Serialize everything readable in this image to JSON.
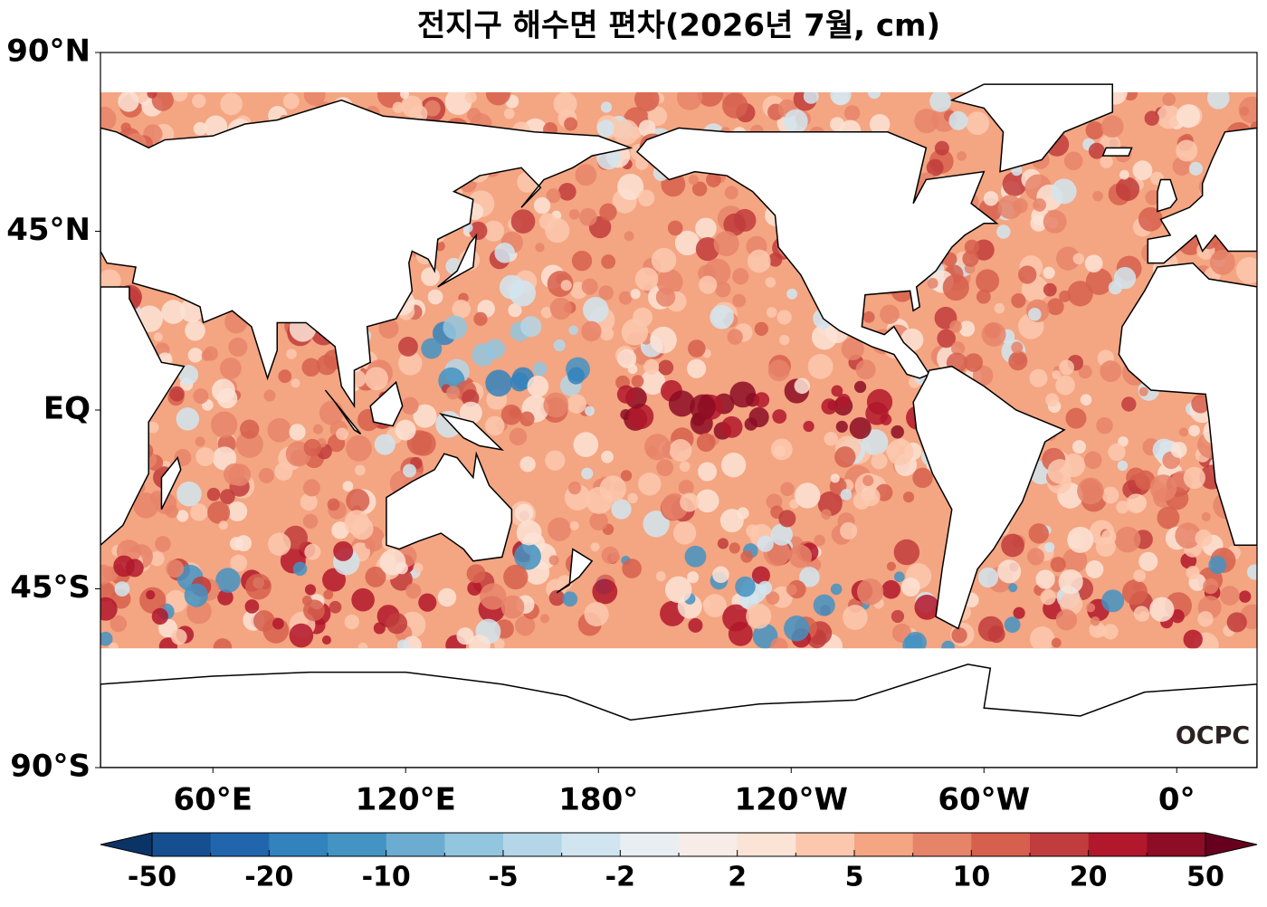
{
  "map": {
    "title": "전지구 해수면 편차(2026년 7월, cm)",
    "lon_range": [
      25,
      385
    ],
    "lat_range": [
      -90,
      90
    ],
    "lon_ticks": [
      {
        "value": 60,
        "label": "60°E"
      },
      {
        "value": 120,
        "label": "120°E"
      },
      {
        "value": 180,
        "label": "180°"
      },
      {
        "value": 240,
        "label": "120°W"
      },
      {
        "value": 300,
        "label": "60°W"
      },
      {
        "value": 360,
        "label": "0°"
      }
    ],
    "lat_ticks": [
      {
        "value": 90,
        "label": "90°N"
      },
      {
        "value": 45,
        "label": "45°N"
      },
      {
        "value": 0,
        "label": "EQ"
      },
      {
        "value": -45,
        "label": "45°S"
      },
      {
        "value": -90,
        "label": "90°S"
      }
    ],
    "logo": "OCPC"
  },
  "colorbar": {
    "ticks": [
      -50,
      -20,
      -10,
      -5,
      -2,
      2,
      5,
      10,
      20,
      50
    ],
    "colors": [
      "#154f8f",
      "#2166ac",
      "#3282bd",
      "#4393c3",
      "#6cacd1",
      "#92c5de",
      "#b5d6e8",
      "#d1e5f0",
      "#e8eef2",
      "#f7ece8",
      "#fbe3d6",
      "#fbc8ae",
      "#f4a582",
      "#e6846a",
      "#d6604d",
      "#c13c3c",
      "#b2182b",
      "#8c0d25"
    ],
    "extend_colors": [
      "#0b3466",
      "#67001f"
    ]
  }
}
